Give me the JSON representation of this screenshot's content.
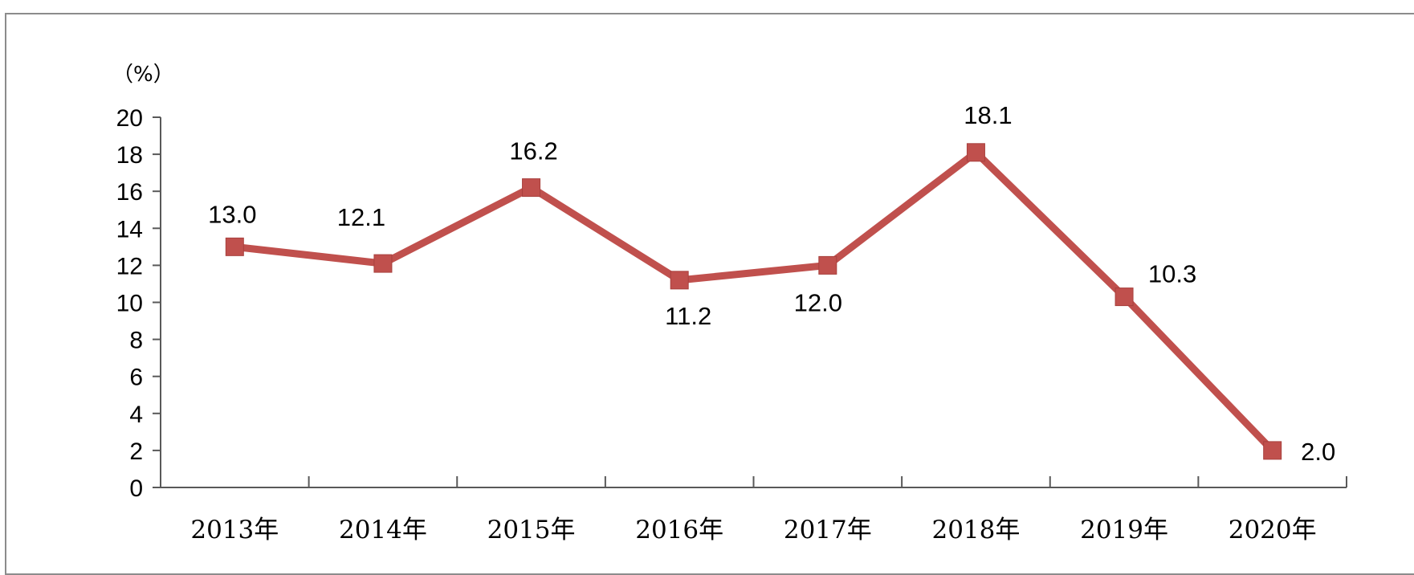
{
  "chart_data": {
    "type": "line",
    "unit_label": "（%）",
    "categories": [
      "2013年",
      "2014年",
      "2015年",
      "2016年",
      "2017年",
      "2018年",
      "2019年",
      "2020年"
    ],
    "series": [
      {
        "values": [
          13.0,
          12.1,
          16.2,
          11.2,
          12.0,
          18.1,
          10.3,
          2.0
        ],
        "data_labels": [
          "13.0",
          "12.1",
          "16.2",
          "11.2",
          "12.0",
          "18.1",
          "10.3",
          "2.0"
        ]
      }
    ],
    "ylim": [
      0,
      20
    ],
    "yticks": [
      "0",
      "2",
      "4",
      "6",
      "8",
      "10",
      "12",
      "14",
      "16",
      "18",
      "20"
    ],
    "grid": false,
    "legend": "none",
    "colors": {
      "line": "#c0504d",
      "axis": "#595959",
      "frame": "#8c8c8c"
    }
  }
}
